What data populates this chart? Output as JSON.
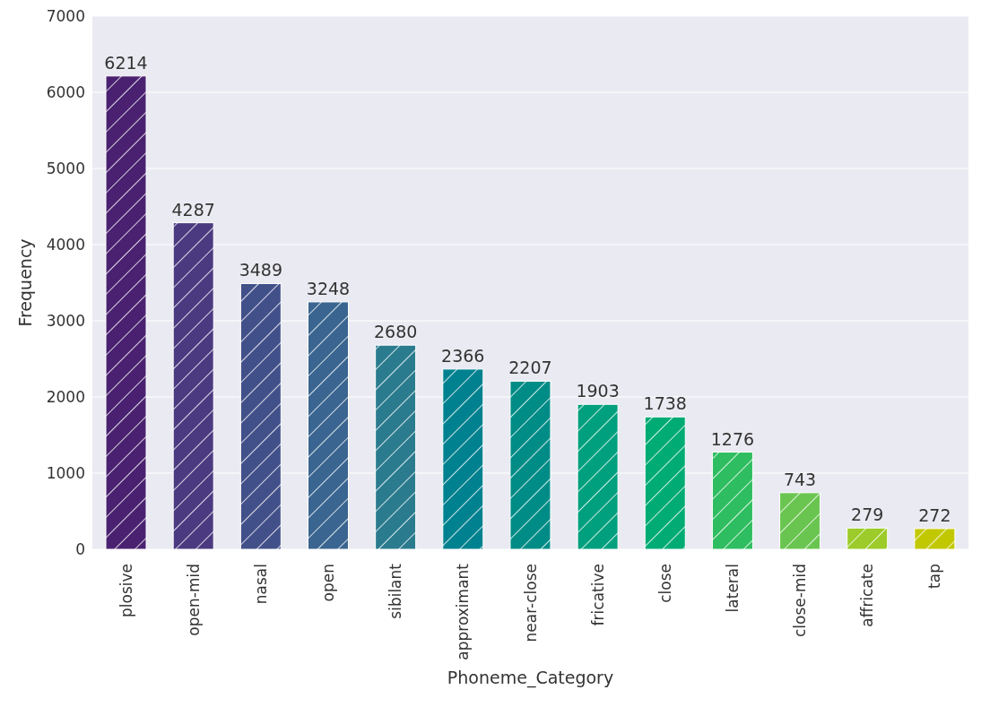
{
  "chart_data": {
    "type": "bar",
    "xlabel": "Phoneme_Category",
    "ylabel": "Frequency",
    "categories": [
      "plosive",
      "open-mid",
      "nasal",
      "open",
      "sibilant",
      "approximant",
      "near-close",
      "fricative",
      "close",
      "lateral",
      "close-mid",
      "affricate",
      "tap"
    ],
    "values": [
      6214,
      4287,
      3489,
      3248,
      2680,
      2366,
      2207,
      1903,
      1738,
      1276,
      743,
      279,
      272
    ],
    "colors": [
      "#4a2170",
      "#4b3a80",
      "#42508a",
      "#3a6590",
      "#2b7b8e",
      "#00818f",
      "#008c86",
      "#00a07e",
      "#00ab74",
      "#2ebd60",
      "#6ac550",
      "#9ccb2a",
      "#c2c800"
    ],
    "ylim": [
      0,
      7000
    ],
    "yticks": [
      0,
      1000,
      2000,
      3000,
      4000,
      5000,
      6000,
      7000
    ],
    "grid": "y",
    "data_labels": true
  }
}
